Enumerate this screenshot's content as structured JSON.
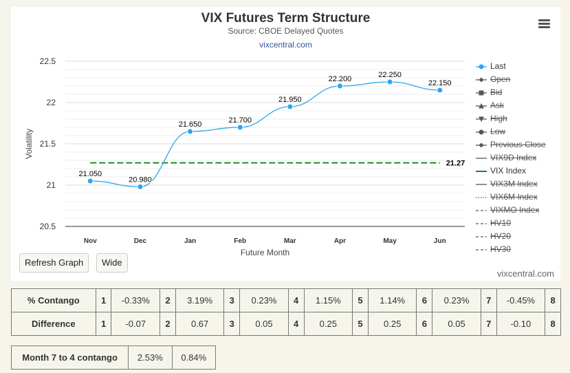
{
  "chart": {
    "title": "VIX Futures Term Structure",
    "subtitle": "Source: CBOE Delayed Quotes",
    "link": "vixcentral.com",
    "credit": "vixcentral.com"
  },
  "chart_data": {
    "type": "line",
    "categories": [
      "Nov",
      "Dec",
      "Jan",
      "Feb",
      "Mar",
      "Apr",
      "May",
      "Jun"
    ],
    "series": [
      {
        "name": "Last",
        "values": [
          21.05,
          20.98,
          21.65,
          21.7,
          21.95,
          22.2,
          22.25,
          22.15
        ],
        "labels": [
          "21.050",
          "20.980",
          "21.650",
          "21.700",
          "21.950",
          "22.200",
          "22.250",
          "22.150"
        ],
        "color": "#2aa6ef"
      },
      {
        "name": "VIX Index",
        "value": 21.27,
        "label": "21.27",
        "color": "#1a8a1a",
        "style": "dashed"
      }
    ],
    "xlabel": "Future Month",
    "ylabel": "Volatility",
    "ylim": [
      20.5,
      22.5
    ],
    "yticks": [
      "20.5",
      "21",
      "21.5",
      "22",
      "22.5"
    ],
    "grid": true,
    "legend_position": "right"
  },
  "legend": [
    {
      "name": "Last",
      "active": true,
      "symbol": "circle-line",
      "color": "#2aa6ef"
    },
    {
      "name": "Open",
      "active": false,
      "symbol": "diamond",
      "color": "#555"
    },
    {
      "name": "Bid",
      "active": false,
      "symbol": "square",
      "color": "#555"
    },
    {
      "name": "Ask",
      "active": false,
      "symbol": "triangle-up",
      "color": "#555"
    },
    {
      "name": "High",
      "active": false,
      "symbol": "triangle-down",
      "color": "#555"
    },
    {
      "name": "Low",
      "active": false,
      "symbol": "circle",
      "color": "#555"
    },
    {
      "name": "Previous Close",
      "active": false,
      "symbol": "diamond",
      "color": "#555"
    },
    {
      "name": "VIX9D Index",
      "active": false,
      "symbol": "line",
      "color": "#555"
    },
    {
      "name": "VIX Index",
      "active": true,
      "symbol": "line",
      "color": "#1a8a1a"
    },
    {
      "name": "VIX3M Index",
      "active": false,
      "symbol": "line",
      "color": "#555"
    },
    {
      "name": "VIX6M Index",
      "active": false,
      "symbol": "dotted",
      "color": "#555"
    },
    {
      "name": "VIXMO Index",
      "active": false,
      "symbol": "dashed",
      "color": "#555"
    },
    {
      "name": "HV10",
      "active": false,
      "symbol": "dashed",
      "color": "#555"
    },
    {
      "name": "HV20",
      "active": false,
      "symbol": "dashed",
      "color": "#555"
    },
    {
      "name": "HV30",
      "active": false,
      "symbol": "dashed",
      "color": "#555"
    }
  ],
  "buttons": {
    "refresh": "Refresh Graph",
    "wide": "Wide"
  },
  "contango_table": {
    "rows": [
      {
        "label": "% Contango",
        "cells": [
          "1",
          "-0.33%",
          "2",
          "3.19%",
          "3",
          "0.23%",
          "4",
          "1.15%",
          "5",
          "1.14%",
          "6",
          "0.23%",
          "7",
          "-0.45%",
          "8"
        ]
      },
      {
        "label": "Difference",
        "cells": [
          "1",
          "-0.07",
          "2",
          "0.67",
          "3",
          "0.05",
          "4",
          "0.25",
          "5",
          "0.25",
          "6",
          "0.05",
          "7",
          "-0.10",
          "8"
        ]
      }
    ]
  },
  "month_table": {
    "label": "Month 7 to 4 contango",
    "value1": "2.53%",
    "value2": "0.84%"
  }
}
